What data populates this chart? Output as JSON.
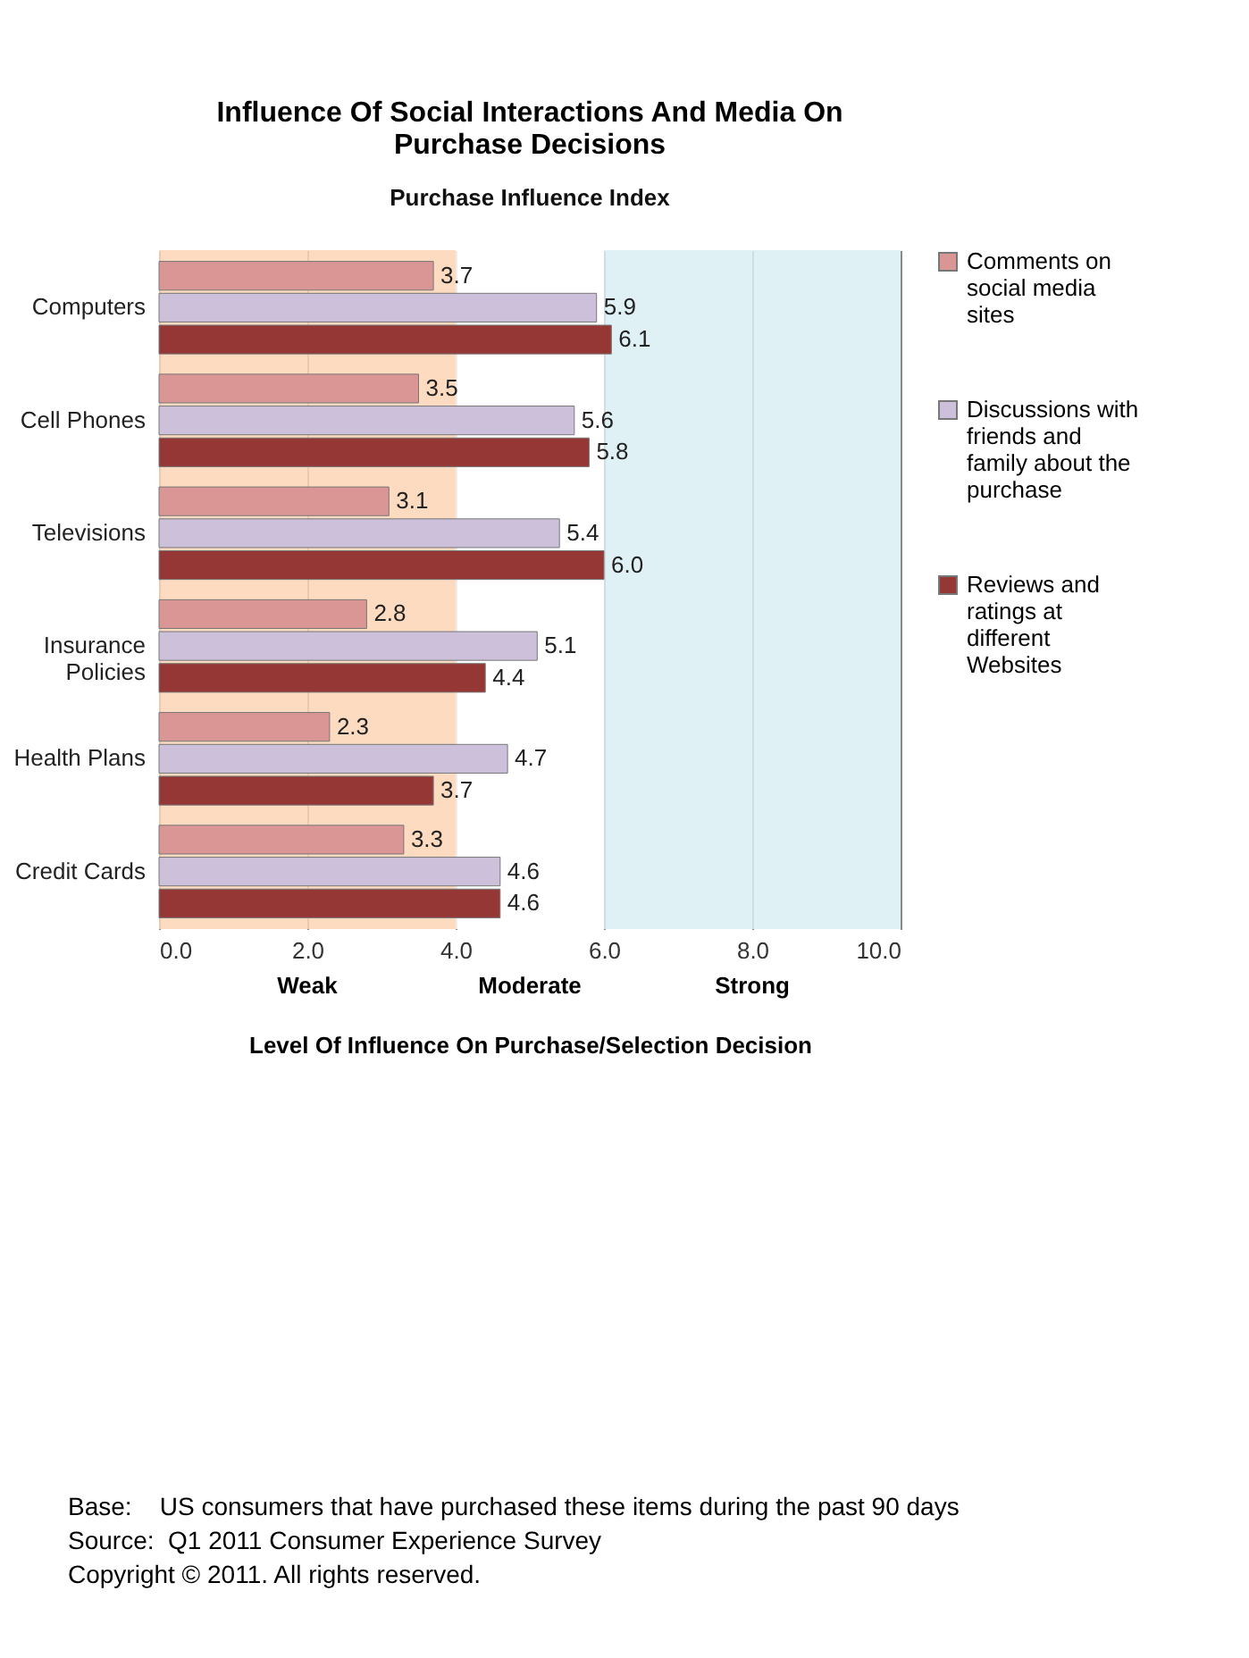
{
  "chart_data": {
    "type": "bar",
    "orientation": "horizontal",
    "title": "Influence Of Social Interactions And Media On Purchase Decisions",
    "subtitle": "Purchase Influence Index",
    "xlabel": "Level Of Influence On Purchase/Selection Decision",
    "categories": [
      "Computers",
      "Cell Phones",
      "Televisions",
      "Insurance Policies",
      "Health Plans",
      "Credit Cards"
    ],
    "series": [
      {
        "name": "Comments on social media sites",
        "color": "#d99694",
        "values": [
          3.7,
          3.5,
          3.1,
          2.8,
          2.3,
          3.3
        ],
        "value_labels": [
          "3.7",
          "3.5",
          "3.1",
          "2.8",
          "2.3",
          "3.3"
        ]
      },
      {
        "name": "Discussions with friends and family about the purchase",
        "color": "#ccc0da",
        "values": [
          5.9,
          5.6,
          5.4,
          5.1,
          4.7,
          4.6
        ],
        "value_labels": [
          "5.9",
          "5.6",
          "5.4",
          "5.1",
          "4.7",
          "4.6"
        ]
      },
      {
        "name": "Reviews and ratings at different Websites",
        "color": "#953735",
        "values": [
          6.1,
          5.8,
          6.0,
          4.4,
          3.7,
          4.6
        ],
        "value_labels": [
          "6.1",
          "5.8",
          "6.0",
          "4.4",
          "3.7",
          "4.6"
        ]
      }
    ],
    "xlim": [
      0,
      10
    ],
    "xticks": [
      {
        "value": 0,
        "label": "0.0"
      },
      {
        "value": 2,
        "label": "2.0"
      },
      {
        "value": 4,
        "label": "4.0"
      },
      {
        "value": 6,
        "label": "6.0"
      },
      {
        "value": 8,
        "label": "8.0"
      },
      {
        "value": 10,
        "label": "10.0"
      }
    ],
    "bands": [
      {
        "axis": "x",
        "from": 0,
        "to": 4,
        "label": "Weak",
        "color": "#fbd5b5"
      },
      {
        "axis": "x",
        "from": 4,
        "to": 6,
        "label": "Moderate",
        "color": "#ffffff"
      },
      {
        "axis": "x",
        "from": 6,
        "to": 10,
        "label": "Strong",
        "color": "#daeef3"
      }
    ],
    "grid": "x",
    "legend": "right",
    "annotations": [
      "Base:    US consumers that have purchased these items during the past 90 days",
      "Source:  Q1 2011 Consumer Experience Survey",
      "Copyright © 2011. All rights reserved."
    ]
  }
}
